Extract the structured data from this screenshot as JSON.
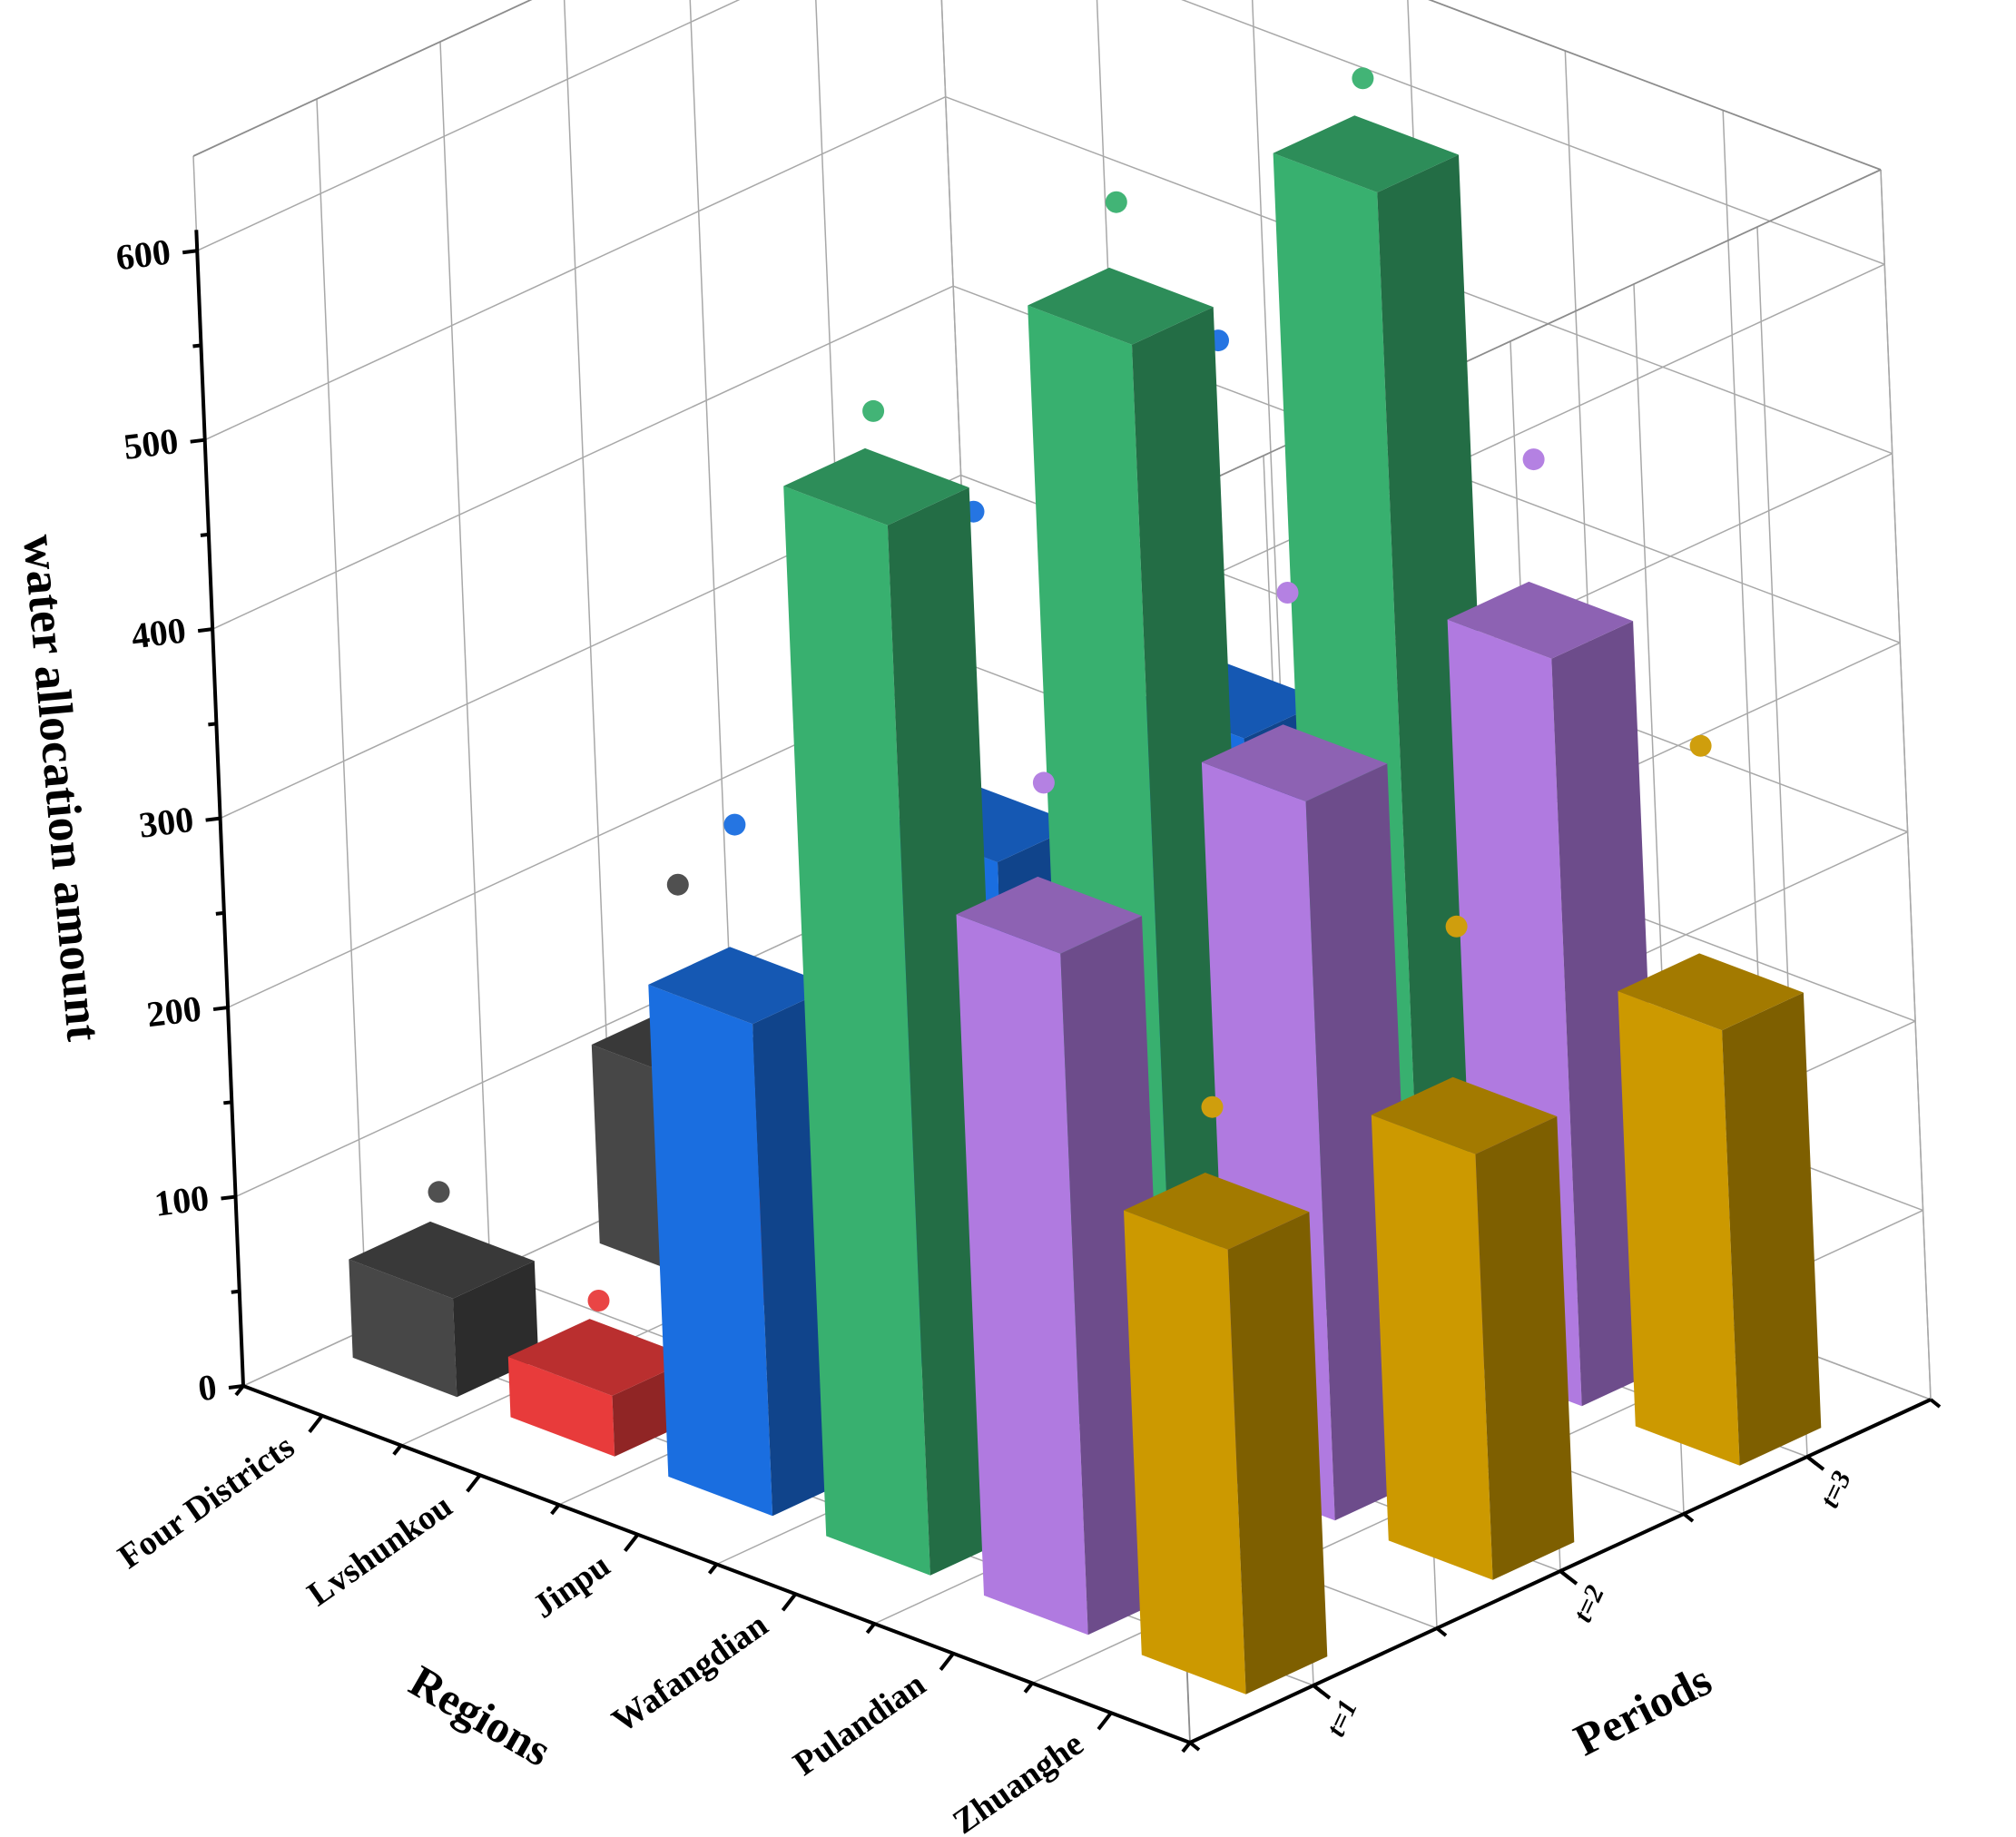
{
  "chart_data": {
    "type": "bar",
    "subtype": "3d-bar-with-points",
    "title": "",
    "zlabel": "water allocation amount",
    "xlabel": "Regions",
    "ylabel": "Periods",
    "zlim": [
      0,
      650
    ],
    "z_ticks": [
      "0",
      "100",
      "200",
      "300",
      "400",
      "500",
      "600"
    ],
    "categories": [
      "Four Districts",
      "Lvshunkou",
      "Jinpu",
      "Wafangdian",
      "Pulandian",
      "Zhuanghe"
    ],
    "periods": [
      "t=1",
      "t=2",
      "t=3"
    ],
    "grid": true,
    "series": [
      {
        "category": "Four Districts",
        "color": "#474747",
        "bars": [
          52,
          105,
          125
        ],
        "points": [
          88,
          190,
          235
        ]
      },
      {
        "category": "Lvshunkou",
        "color": "#e83b3b",
        "bars": [
          32,
          58,
          80
        ],
        "points": [
          62,
          145,
          155
        ]
      },
      {
        "category": "Jinpu",
        "color": "#1a6ee0",
        "bars": [
          260,
          285,
          290
        ],
        "points": [
          345,
          450,
          480
        ]
      },
      {
        "category": "Wafangdian",
        "color": "#38b06f",
        "bars": [
          555,
          590,
          610
        ],
        "points": [
          595,
          645,
          650
        ]
      },
      {
        "category": "Pulandian",
        "color": "#b07ae0",
        "bars": [
          360,
          380,
          395
        ],
        "points": [
          430,
          470,
          480
        ]
      },
      {
        "category": "Zhuanghe",
        "color": "#cc9900",
        "bars": [
          235,
          225,
          230
        ],
        "points": [
          290,
          325,
          360
        ]
      }
    ]
  }
}
